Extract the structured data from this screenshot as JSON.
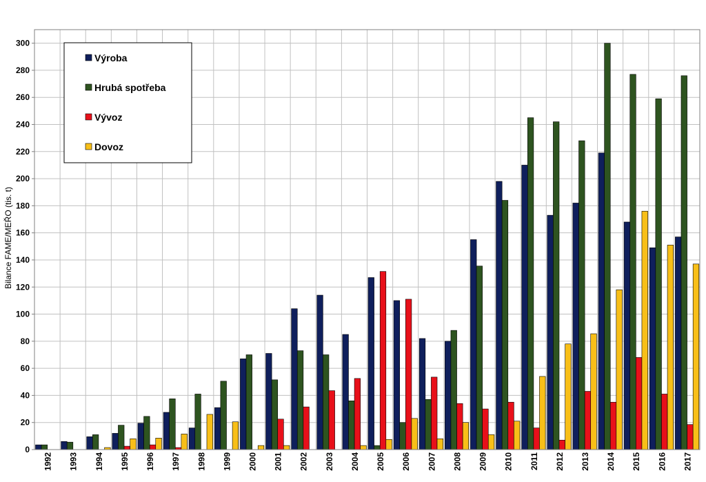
{
  "chart_data": {
    "type": "bar",
    "ylabel": "Bilance FAME/MEŘO (tis. t)",
    "ylim": [
      0,
      310
    ],
    "yticks": [
      0,
      20,
      40,
      60,
      80,
      100,
      120,
      140,
      160,
      180,
      200,
      220,
      240,
      260,
      280,
      300
    ],
    "grid": true,
    "legend_position": "top-left",
    "categories": [
      "1992",
      "1993",
      "1994",
      "1995",
      "1996",
      "1997",
      "1998",
      "1999",
      "2000",
      "2001",
      "2002",
      "2003",
      "2004",
      "2005",
      "2006",
      "2007",
      "2008",
      "2009",
      "2010",
      "2011",
      "2012",
      "2013",
      "2014",
      "2015",
      "2016",
      "2017"
    ],
    "series": [
      {
        "name": "Výroba",
        "color": "#0f1f5c",
        "values": [
          3.5,
          6,
          9.5,
          12,
          19.5,
          27.5,
          16,
          31,
          67,
          71,
          104,
          114,
          85,
          127,
          110,
          82,
          80,
          155,
          198,
          210,
          173,
          182,
          219,
          168,
          149,
          157
        ]
      },
      {
        "name": "Hrubá spotřeba",
        "color": "#2e5420",
        "values": [
          3.5,
          5.5,
          11,
          18,
          24.5,
          37.5,
          41,
          50.5,
          70,
          51.5,
          73,
          70,
          36,
          3,
          20,
          37,
          88,
          135.5,
          184,
          245,
          242,
          228,
          300,
          277,
          259,
          276
        ]
      },
      {
        "name": "Vývoz",
        "color": "#e8101a",
        "values": [
          0,
          0,
          0,
          2.5,
          3.5,
          1.5,
          0,
          0,
          0,
          22.5,
          31.5,
          43.5,
          52.5,
          131.5,
          111,
          53.5,
          34,
          30,
          35,
          16,
          7,
          43,
          35,
          68,
          41,
          18.5
        ]
      },
      {
        "name": "Dovoz",
        "color": "#f8bf18",
        "values": [
          0,
          0,
          1.5,
          8,
          8.5,
          11.5,
          26,
          20.5,
          3,
          3,
          0,
          0,
          3,
          7.5,
          23,
          8,
          20,
          11,
          21,
          54,
          78,
          85.5,
          118,
          176,
          151,
          137
        ]
      }
    ]
  }
}
